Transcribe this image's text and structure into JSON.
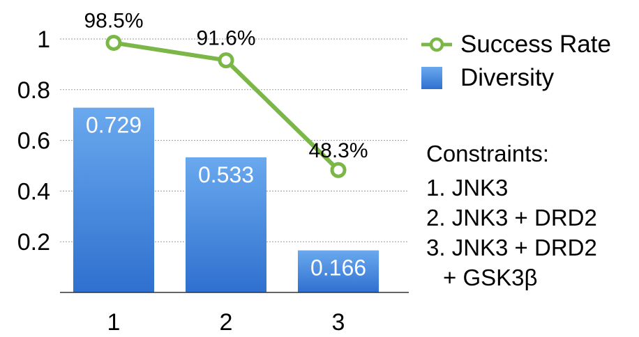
{
  "chart_data": {
    "type": "bar",
    "categories": [
      "1",
      "2",
      "3"
    ],
    "series": [
      {
        "name": "Diversity",
        "kind": "bar",
        "values": [
          0.729,
          0.533,
          0.166
        ],
        "labels": [
          "0.729",
          "0.533",
          "0.166"
        ],
        "color": "#4a8ee3"
      },
      {
        "name": "Success Rate",
        "kind": "line",
        "values": [
          0.985,
          0.916,
          0.483
        ],
        "labels": [
          "98.5%",
          "91.6%",
          "48.3%"
        ],
        "color": "#7ab648"
      }
    ],
    "yticks": [
      "0.2",
      "0.4",
      "0.6",
      "0.8",
      "1"
    ],
    "ylim": [
      0,
      1.05
    ],
    "grid": true,
    "legend_position": "right"
  },
  "constraints": {
    "title": "Constraints:",
    "items": [
      {
        "text": "1. JNK3"
      },
      {
        "text": "2. JNK3 + DRD2"
      },
      {
        "text": "3. JNK3 + DRD2",
        "cont": "+ GSK3β"
      }
    ]
  }
}
